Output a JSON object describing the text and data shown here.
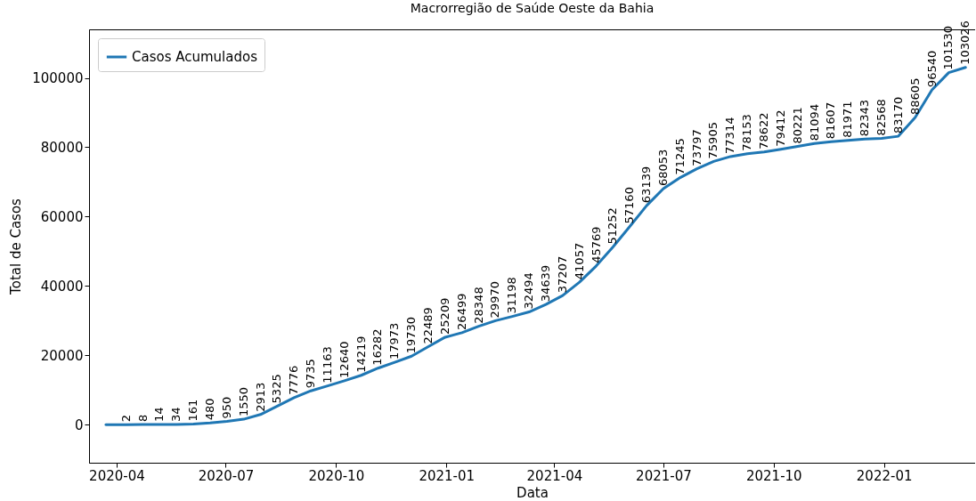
{
  "chart_data": {
    "type": "line",
    "title": "Macrorregião de Saúde Oeste da Bahia",
    "xlabel": "Data",
    "ylabel": "Total de Casos",
    "x": [
      "2020-03-23",
      "2020-04-09",
      "2020-04-23",
      "2020-05-07",
      "2020-05-21",
      "2020-06-04",
      "2020-06-18",
      "2020-07-02",
      "2020-07-16",
      "2020-07-30",
      "2020-08-13",
      "2020-08-27",
      "2020-09-10",
      "2020-09-24",
      "2020-10-08",
      "2020-10-22",
      "2020-11-05",
      "2020-11-19",
      "2020-12-03",
      "2020-12-17",
      "2020-12-31",
      "2021-01-14",
      "2021-01-28",
      "2021-02-11",
      "2021-02-25",
      "2021-03-11",
      "2021-03-25",
      "2021-04-08",
      "2021-04-22",
      "2021-05-06",
      "2021-05-20",
      "2021-06-03",
      "2021-06-17",
      "2021-07-01",
      "2021-07-15",
      "2021-07-29",
      "2021-08-12",
      "2021-08-26",
      "2021-09-09",
      "2021-09-23",
      "2021-10-07",
      "2021-10-21",
      "2021-11-04",
      "2021-11-18",
      "2021-12-02",
      "2021-12-16",
      "2021-12-30",
      "2022-01-13",
      "2022-01-27",
      "2022-02-10",
      "2022-02-24",
      "2022-03-10"
    ],
    "series": [
      {
        "name": "Casos Acumulados",
        "color": "#1f77b4",
        "values": [
          0,
          2,
          8,
          14,
          34,
          161,
          480,
          950,
          1550,
          2913,
          5325,
          7776,
          9735,
          11163,
          12640,
          14219,
          16282,
          17973,
          19730,
          22489,
          25209,
          26499,
          28348,
          29970,
          31198,
          32494,
          34639,
          37207,
          41057,
          45769,
          51252,
          57160,
          63139,
          68053,
          71245,
          73797,
          75905,
          77314,
          78153,
          78622,
          79412,
          80221,
          81094,
          81607,
          81971,
          82343,
          82568,
          83170,
          88605,
          96540,
          101530,
          103026
        ],
        "value_labels": [
          null,
          "2",
          "8",
          "14",
          "34",
          "161",
          "480",
          "950",
          "1550",
          "2913",
          "5325",
          "7776",
          "9735",
          "11163",
          "12640",
          "14219",
          "16282",
          "17973",
          "19730",
          "22489",
          "25209",
          "26499",
          "28348",
          "29970",
          "31198",
          "32494",
          "34639",
          "37207",
          "41057",
          "45769",
          "51252",
          "57160",
          "63139",
          "68053",
          "71245",
          "73797",
          "75905",
          "77314",
          "78153",
          "78622",
          "79412",
          "80221",
          "81094",
          "81607",
          "81971",
          "82343",
          "82568",
          "83170",
          "88605",
          "96540",
          "101530",
          "103026"
        ]
      }
    ],
    "xlim": [
      "2020-03-09",
      "2022-03-18"
    ],
    "xticks": [
      {
        "value": "2020-04-01",
        "label": "2020-04"
      },
      {
        "value": "2020-07-01",
        "label": "2020-07"
      },
      {
        "value": "2020-10-01",
        "label": "2020-10"
      },
      {
        "value": "2021-01-01",
        "label": "2021-01"
      },
      {
        "value": "2021-04-01",
        "label": "2021-04"
      },
      {
        "value": "2021-07-01",
        "label": "2021-07"
      },
      {
        "value": "2021-10-01",
        "label": "2021-10"
      },
      {
        "value": "2022-01-01",
        "label": "2022-01"
      }
    ],
    "ylim": [
      -11000,
      114000
    ],
    "yticks": [
      0,
      20000,
      40000,
      60000,
      80000,
      100000
    ],
    "grid": false,
    "legend": "top left",
    "marker": "none",
    "line_style": "solid"
  }
}
